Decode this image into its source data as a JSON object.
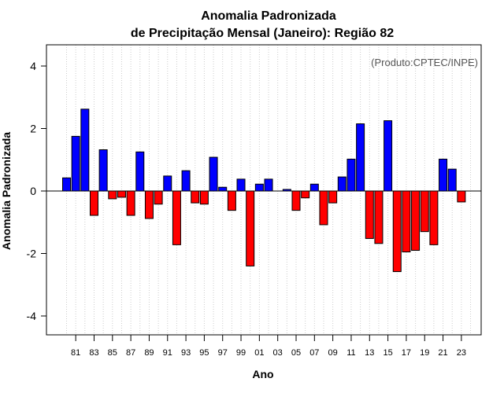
{
  "chart_data": {
    "type": "bar",
    "title": "Anomalia Padronizada",
    "subtitle": "de Precipitação Mensal (Janeiro): Região 82",
    "xlabel": "Ano",
    "ylabel": "Anomalia Padronizada",
    "annotation": "(Produto:CPTEC/INPE)",
    "ylim": [
      -4.6,
      4.6
    ],
    "yticks": [
      -4,
      -2,
      0,
      2,
      4
    ],
    "grid": "vertical dotted",
    "x_tick_labels": [
      "81",
      "83",
      "85",
      "87",
      "89",
      "91",
      "93",
      "95",
      "97",
      "99",
      "01",
      "03",
      "05",
      "07",
      "09",
      "11",
      "13",
      "15",
      "17",
      "19",
      "21",
      "23"
    ],
    "categories": [
      "1980",
      "1981",
      "1982",
      "1983",
      "1984",
      "1985",
      "1986",
      "1987",
      "1988",
      "1989",
      "1990",
      "1991",
      "1992",
      "1993",
      "1994",
      "1995",
      "1996",
      "1997",
      "1998",
      "1999",
      "2000",
      "2001",
      "2002",
      "2003",
      "2004",
      "2005",
      "2006",
      "2007",
      "2008",
      "2009",
      "2010",
      "2011",
      "2012",
      "2013",
      "2014",
      "2015",
      "2016",
      "2017",
      "2018",
      "2019",
      "2020",
      "2021",
      "2022",
      "2023",
      "2024"
    ],
    "values": [
      0.42,
      1.75,
      2.62,
      -0.78,
      1.32,
      -0.25,
      -0.2,
      -0.78,
      1.25,
      -0.88,
      -0.42,
      0.48,
      -1.72,
      0.65,
      -0.38,
      -0.42,
      1.08,
      0.12,
      -0.62,
      0.38,
      -2.4,
      0.22,
      0.38,
      0.0,
      0.05,
      -0.62,
      -0.22,
      0.22,
      -1.08,
      -0.38,
      0.45,
      1.02,
      2.15,
      -1.52,
      -1.68,
      2.25,
      -2.58,
      -1.95,
      -1.9,
      -1.3,
      -1.72,
      1.02,
      0.7,
      -0.35,
      null
    ],
    "colors": {
      "positive": "#0000ff",
      "negative": "#ff0000",
      "grid": "#cccccc"
    }
  }
}
